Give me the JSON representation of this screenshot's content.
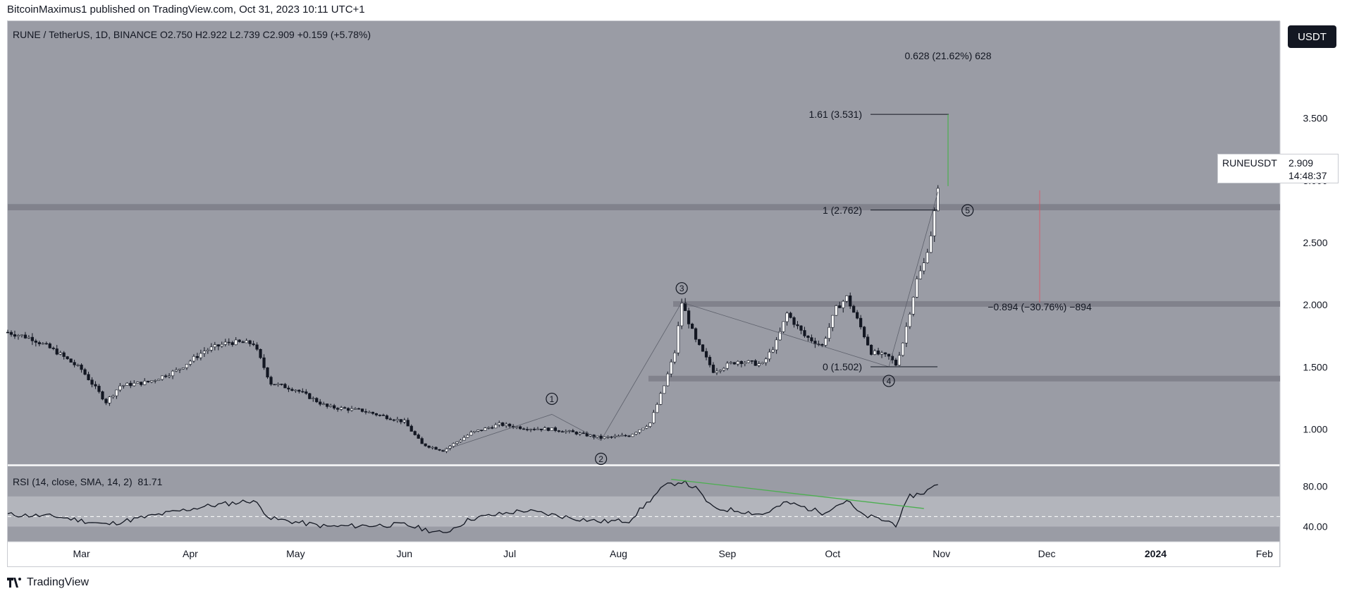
{
  "header": {
    "publish_line": "BitcoinMaximus1 published on TradingView.com, Oct 31, 2023 10:11 UTC+1"
  },
  "legend": {
    "symbol": "RUNE / TetherUS, 1D, BINANCE",
    "o_label": "O",
    "o_value": "2.750",
    "h_label": "H",
    "h_value": "2.922",
    "l_label": "L",
    "l_value": "2.739",
    "c_label": "C",
    "c_value": "2.909",
    "change": "+0.159 (+5.78%)"
  },
  "currency_button": "USDT",
  "price_tag": {
    "symbol": "RUNEUSDT",
    "price": "2.909",
    "countdown": "14:48:37"
  },
  "rsi_legend": {
    "label": "RSI (14, close, SMA, 14, 2)",
    "value": "81.71"
  },
  "footer": {
    "brand": "TradingView"
  },
  "colors": {
    "chart_bg": "#9a9ca5",
    "rsi_band": "#b3b5bc",
    "zone": "#7e8089",
    "candle": "#ffffff",
    "fib_target": "#26a69a",
    "divergence": "#4caf50",
    "red_marker": "#e05060"
  },
  "chart_data": [
    {
      "type": "candlestick",
      "x_tick_labels": [
        "Mar",
        "Apr",
        "May",
        "Jun",
        "Jul",
        "Aug",
        "Sep",
        "Oct",
        "Nov",
        "Dec",
        "2024",
        "Feb"
      ],
      "x_ticks": [
        "2023-03-01",
        "2023-04-01",
        "2023-05-01",
        "2023-06-01",
        "2023-07-01",
        "2023-08-01",
        "2023-09-01",
        "2023-10-01",
        "2023-11-01",
        "2023-12-01",
        "2024-01-01",
        "2024-02-01"
      ],
      "y_tick_labels": [
        "1.000",
        "1.500",
        "2.000",
        "2.500",
        "3.000",
        "3.500"
      ],
      "ylim": [
        0.72,
        4.28
      ],
      "approx_close_series": {
        "dates": [
          "2023-02-08",
          "2023-02-15",
          "2023-02-22",
          "2023-03-01",
          "2023-03-08",
          "2023-03-12",
          "2023-03-20",
          "2023-03-28",
          "2023-04-05",
          "2023-04-12",
          "2023-04-19",
          "2023-04-24",
          "2023-05-01",
          "2023-05-10",
          "2023-05-20",
          "2023-06-01",
          "2023-06-06",
          "2023-06-12",
          "2023-06-20",
          "2023-06-28",
          "2023-07-05",
          "2023-07-13",
          "2023-07-20",
          "2023-07-27",
          "2023-08-04",
          "2023-08-10",
          "2023-08-14",
          "2023-08-17",
          "2023-08-19",
          "2023-08-23",
          "2023-08-28",
          "2023-09-04",
          "2023-09-11",
          "2023-09-15",
          "2023-09-18",
          "2023-09-23",
          "2023-09-28",
          "2023-10-02",
          "2023-10-05",
          "2023-10-09",
          "2023-10-12",
          "2023-10-17",
          "2023-10-19",
          "2023-10-21",
          "2023-10-23",
          "2023-10-25",
          "2023-10-27",
          "2023-10-29",
          "2023-10-31"
        ],
        "values": [
          1.78,
          1.73,
          1.62,
          1.48,
          1.22,
          1.35,
          1.38,
          1.47,
          1.63,
          1.7,
          1.69,
          1.37,
          1.32,
          1.18,
          1.15,
          1.06,
          0.88,
          0.83,
          0.97,
          1.04,
          1.01,
          1.0,
          0.97,
          0.93,
          0.95,
          1.05,
          1.35,
          1.62,
          2.02,
          1.71,
          1.47,
          1.55,
          1.52,
          1.7,
          1.93,
          1.75,
          1.67,
          1.97,
          2.06,
          1.82,
          1.62,
          1.58,
          1.52,
          1.7,
          1.95,
          2.2,
          2.33,
          2.57,
          2.909
        ]
      },
      "support_resistance_zones": [
        {
          "low": 2.76,
          "high": 2.81
        },
        {
          "low": 1.99,
          "high": 2.03
        },
        {
          "low": 1.4,
          "high": 1.43
        }
      ],
      "fibonacci_levels": [
        {
          "label": "1.61 (3.531)",
          "value": 3.531
        },
        {
          "label": "1 (2.762)",
          "value": 2.762
        },
        {
          "label": "0 (1.502)",
          "value": 1.502
        }
      ],
      "measure_annotations": [
        {
          "label": "0.628 (21.62%) 628"
        },
        {
          "label": "−0.894 (−30.76%) −894"
        }
      ],
      "wave_labels": [
        {
          "label": "1",
          "date": "2023-07-13",
          "value": 1.12
        },
        {
          "label": "2",
          "date": "2023-07-27",
          "value": 0.91
        },
        {
          "label": "3",
          "date": "2023-08-19",
          "value": 2.02
        },
        {
          "label": "4",
          "date": "2023-10-17",
          "value": 1.502
        },
        {
          "label": "5",
          "date": "2023-10-31",
          "value": 2.909
        }
      ]
    },
    {
      "type": "line",
      "title": "RSI (14, close, SMA, 14, 2)",
      "y_tick_labels": [
        "40.00",
        "80.00"
      ],
      "ylim": [
        25,
        100
      ],
      "band": [
        40,
        70
      ],
      "midline": 50,
      "approx_series": {
        "dates": [
          "2023-02-08",
          "2023-02-22",
          "2023-03-08",
          "2023-03-20",
          "2023-04-05",
          "2023-04-19",
          "2023-04-24",
          "2023-05-10",
          "2023-06-01",
          "2023-06-12",
          "2023-06-20",
          "2023-07-05",
          "2023-07-20",
          "2023-07-27",
          "2023-08-04",
          "2023-08-14",
          "2023-08-19",
          "2023-08-23",
          "2023-08-28",
          "2023-09-04",
          "2023-09-11",
          "2023-09-18",
          "2023-09-28",
          "2023-10-05",
          "2023-10-09",
          "2023-10-17",
          "2023-10-19",
          "2023-10-23",
          "2023-10-27",
          "2023-10-31"
        ],
        "values": [
          52,
          50,
          42,
          50,
          60,
          66,
          48,
          40,
          42,
          33,
          48,
          56,
          48,
          45,
          46,
          80,
          85,
          78,
          58,
          56,
          52,
          64,
          54,
          66,
          52,
          45,
          42,
          70,
          74,
          81.71
        ]
      },
      "divergence_line": {
        "from": [
          "2023-08-16",
          87
        ],
        "to": [
          "2023-10-27",
          58
        ]
      }
    }
  ]
}
